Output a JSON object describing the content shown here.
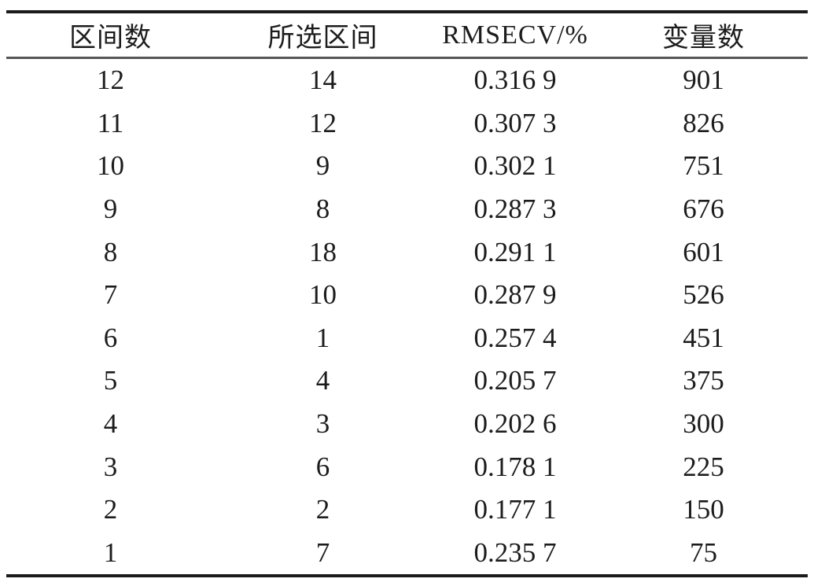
{
  "table": {
    "columns": [
      "区间数",
      "所选区间",
      "RMSECV/%",
      "变量数"
    ],
    "rows": [
      [
        "12",
        "14",
        "0.316 9",
        "901"
      ],
      [
        "11",
        "12",
        "0.307 3",
        "826"
      ],
      [
        "10",
        "9",
        "0.302 1",
        "751"
      ],
      [
        "9",
        "8",
        "0.287 3",
        "676"
      ],
      [
        "8",
        "18",
        "0.291 1",
        "601"
      ],
      [
        "7",
        "10",
        "0.287 9",
        "526"
      ],
      [
        "6",
        "1",
        "0.257 4",
        "451"
      ],
      [
        "5",
        "4",
        "0.205 7",
        "375"
      ],
      [
        "4",
        "3",
        "0.202 6",
        "300"
      ],
      [
        "3",
        "6",
        "0.178 1",
        "225"
      ],
      [
        "2",
        "2",
        "0.177 1",
        "150"
      ],
      [
        "1",
        "7",
        "0.235 7",
        "75"
      ]
    ],
    "colors": {
      "text": "#1c1c1c",
      "outer_rule": "#1b1b1b",
      "header_rule": "#565656",
      "background": "#ffffff"
    }
  },
  "chart_data": {
    "type": "table",
    "title": "",
    "columns": [
      "区间数",
      "所选区间",
      "RMSECV/%",
      "变量数"
    ],
    "rows": [
      [
        12,
        14,
        0.3169,
        901
      ],
      [
        11,
        12,
        0.3073,
        826
      ],
      [
        10,
        9,
        0.3021,
        751
      ],
      [
        9,
        8,
        0.2873,
        676
      ],
      [
        8,
        18,
        0.2911,
        601
      ],
      [
        7,
        10,
        0.2879,
        526
      ],
      [
        6,
        1,
        0.2574,
        451
      ],
      [
        5,
        4,
        0.2057,
        375
      ],
      [
        4,
        3,
        0.2026,
        300
      ],
      [
        3,
        6,
        0.1781,
        225
      ],
      [
        2,
        2,
        0.1771,
        150
      ],
      [
        1,
        7,
        0.2357,
        75
      ]
    ]
  }
}
